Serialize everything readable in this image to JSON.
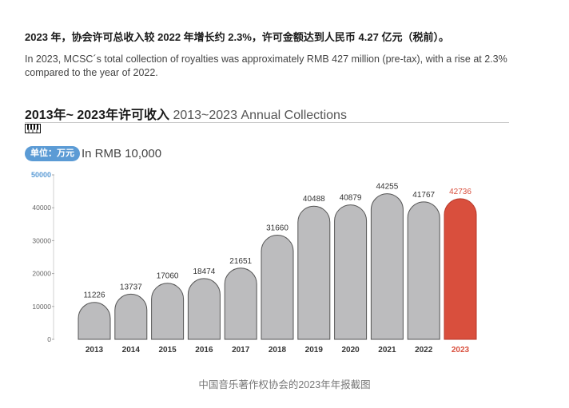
{
  "headline": "2023 年，协会许可总收入较 2022 年增长约 2.3%，许可金额达到人民币 4.27 亿元（税前）。",
  "subtext": "In 2023, MCSC´s total collection of royalties was approximately RMB 427 million (pre-tax), with a rise at 2.3% compared to the year of 2022.",
  "chart_title_zh": "2013年~ 2023年许可收入",
  "chart_title_en": "2013~2023 Annual Collections",
  "unit_badge": "单位：万元",
  "unit_en": "In RMB 10,000",
  "caption": "中国音乐著作权协会的2023年年报截图",
  "colors": {
    "bar": "#bcbcbe",
    "highlight": "#d94f3d",
    "axis_top": "#5b9bd5",
    "badge": "#5b9bd5"
  },
  "icons": [
    "piano-icon"
  ],
  "chart_data": {
    "type": "bar",
    "categories": [
      "2013",
      "2014",
      "2015",
      "2016",
      "2017",
      "2018",
      "2019",
      "2020",
      "2021",
      "2022",
      "2023"
    ],
    "values": [
      11226,
      13737,
      17060,
      18474,
      21651,
      31660,
      40488,
      40879,
      44255,
      41767,
      42736
    ],
    "ylim": [
      0,
      50000
    ],
    "yticks": [
      0,
      10000,
      20000,
      30000,
      40000,
      50000
    ],
    "highlight_category": "2023",
    "grid": false,
    "legend": "none"
  }
}
